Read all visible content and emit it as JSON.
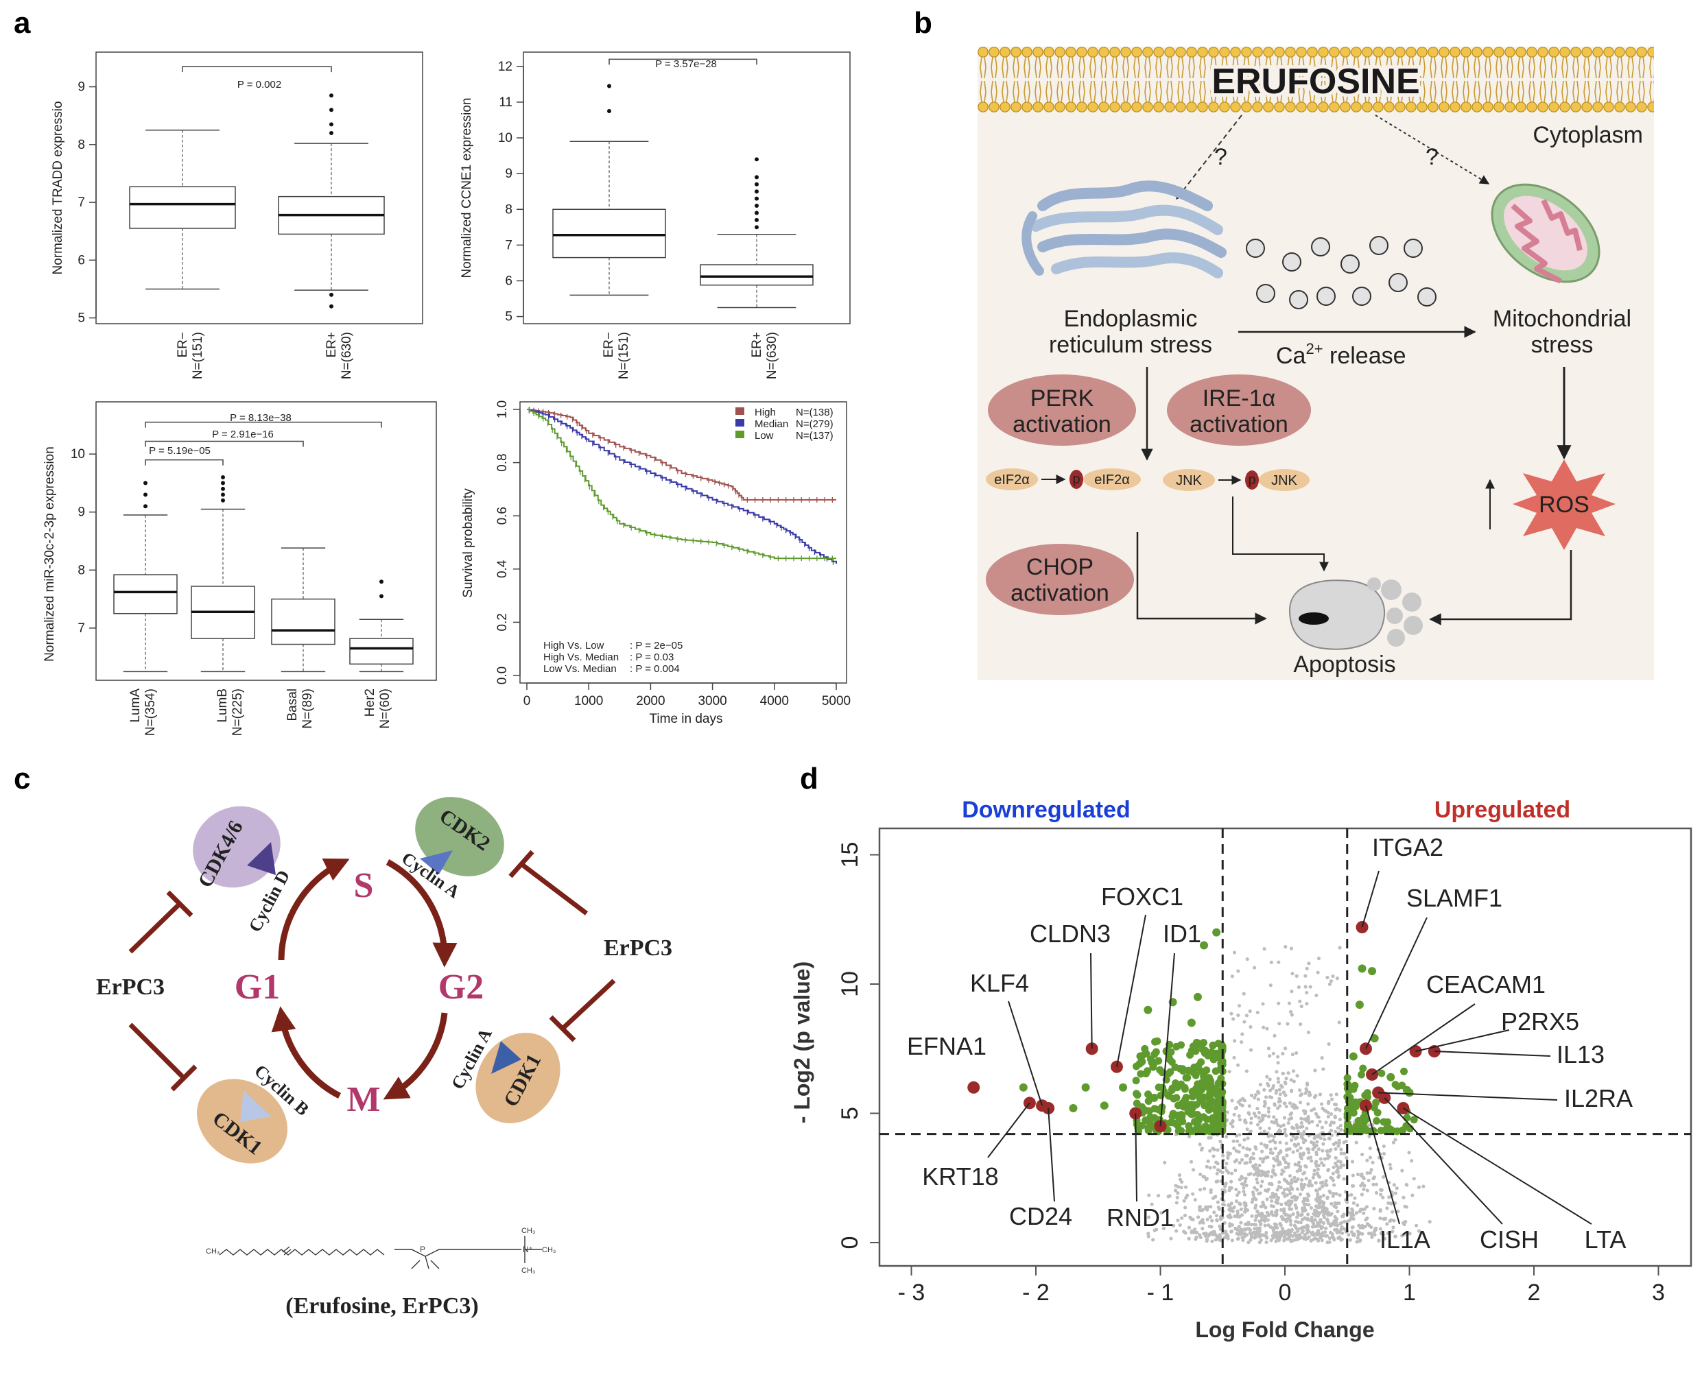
{
  "panel_labels": [
    "a",
    "b",
    "c",
    "d"
  ],
  "panel_a": {
    "tradd": {
      "ylabel": "Normalized TRADD expressio",
      "yticks": [
        "5",
        "6",
        "7",
        "8",
        "9"
      ],
      "groups": [
        {
          "name": "ER−",
          "n": "N=(151)"
        },
        {
          "name": "ER+",
          "n": "N=(630)"
        }
      ],
      "pvalue": "P = 0.002"
    },
    "ccne1": {
      "ylabel": "Normalized CCNE1 expression",
      "yticks": [
        "5",
        "6",
        "7",
        "8",
        "9",
        "10",
        "11",
        "12"
      ],
      "groups": [
        {
          "name": "ER−",
          "n": "N=(151)"
        },
        {
          "name": "ER+",
          "n": "N=(630)"
        }
      ],
      "pvalue": "P = 3.57e−28"
    },
    "mir30c": {
      "ylabel": "Normalized miR-30c-2-3p expression",
      "yticks": [
        "7",
        "8",
        "9",
        "10"
      ],
      "groups": [
        {
          "name": "LumA",
          "n": "N=(354)"
        },
        {
          "name": "LumB",
          "n": "N=(225)"
        },
        {
          "name": "Basal",
          "n": "N=(89)"
        },
        {
          "name": "Her2",
          "n": "N=(60)"
        }
      ],
      "pvalues": [
        "P = 5.19e−05",
        "P = 2.91e−16",
        "P = 8.13e−38"
      ]
    },
    "survival": {
      "ylabel": "Survival probability",
      "xlabel": "Time in days",
      "yticks": [
        "0.0",
        "0.2",
        "0.4",
        "0.6",
        "0.8",
        "1.0"
      ],
      "xticks": [
        "0",
        "1000",
        "2000",
        "3000",
        "4000",
        "5000"
      ],
      "legend": [
        {
          "label": "High",
          "n": "N=(138)",
          "color": "#a0524e"
        },
        {
          "label": "Median",
          "n": "N=(279)",
          "color": "#3a3aa8"
        },
        {
          "label": "Low",
          "n": "N=(137)",
          "color": "#5e9a2e"
        }
      ],
      "stats": [
        {
          "label": "High Vs. Low",
          "value": ": P = 2e−05"
        },
        {
          "label": "High Vs. Median",
          "value": ": P = 0.03"
        },
        {
          "label": "Low Vs. Median",
          "value": ": P = 0.004"
        }
      ]
    }
  },
  "panel_b": {
    "drug": "ERUFOSINE",
    "compartment": "Cytoplasm",
    "question_mark": "?",
    "er_stress": [
      "Endoplasmic",
      "reticulum stress"
    ],
    "mito_stress": [
      "Mitochondrial",
      "stress"
    ],
    "ca_release": "Ca",
    "ca_sup": "2+",
    "ca_suffix": " release",
    "perk": [
      "PERK",
      "activation"
    ],
    "ire": [
      "IRE-1α",
      "activation"
    ],
    "chop": [
      "CHOP",
      "activation"
    ],
    "eif": "eIF2α",
    "p": "p",
    "jnk": "JNK",
    "ros": "ROS",
    "apoptosis": "Apoptosis"
  },
  "panel_c": {
    "phases": [
      "S",
      "G2",
      "M",
      "G1"
    ],
    "cdks": [
      "CDK4/6",
      "CDK2",
      "CDK1",
      "CDK1"
    ],
    "cyclins": [
      "Cyclin D",
      "Cyclin A",
      "Cyclin A",
      "Cyclin B"
    ],
    "inhibitor": "ErPC3",
    "compound_caption": "(Erufosine, ErPC3)"
  },
  "panel_d": {
    "downregulated": "Downregulated",
    "upregulated": "Upregulated",
    "xlabel": "Log Fold Change",
    "ylabel": "- Log2 (p value)",
    "xticks": [
      "- 3",
      "- 2",
      "- 1",
      "0",
      "1",
      "2",
      "3"
    ],
    "yticks": [
      "0",
      "5",
      "10",
      "15"
    ],
    "genes_down": [
      "FOXC1",
      "CLDN3",
      "ID1",
      "KLF4",
      "EFNA1",
      "KRT18",
      "CD24",
      "RND1"
    ],
    "genes_up": [
      "ITGA2",
      "SLAMF1",
      "CEACAM1",
      "P2RX5",
      "IL13",
      "IL2RA",
      "IL1A",
      "CISH",
      "LTA"
    ]
  },
  "chart_data": [
    {
      "type": "box",
      "ylabel": "Normalized TRADD expressio",
      "categories": [
        "ER− N=(151)",
        "ER+ N=(630)"
      ],
      "boxes": [
        {
          "low": 5.5,
          "q1": 6.55,
          "median": 6.97,
          "q3": 7.27,
          "high": 8.25
        },
        {
          "low": 5.48,
          "q1": 6.45,
          "median": 6.78,
          "q3": 7.1,
          "high": 8.02
        }
      ],
      "outliers": [
        [],
        [
          8.85,
          8.6,
          8.35,
          8.2,
          5.4,
          5.2
        ]
      ],
      "ylim": [
        4.9,
        9.6
      ]
    },
    {
      "type": "box",
      "ylabel": "Normalized CCNE1 expression",
      "categories": [
        "ER− N=(151)",
        "ER+ N=(630)"
      ],
      "boxes": [
        {
          "low": 5.6,
          "q1": 6.65,
          "median": 7.28,
          "q3": 8.0,
          "high": 9.9
        },
        {
          "low": 5.25,
          "q1": 5.88,
          "median": 6.12,
          "q3": 6.45,
          "high": 7.3
        }
      ],
      "outliers": [
        [
          11.45,
          10.75
        ],
        [
          7.5,
          7.7,
          7.9,
          8.1,
          8.3,
          8.5,
          8.7,
          8.9,
          9.4
        ]
      ],
      "ylim": [
        4.8,
        12.4
      ]
    },
    {
      "type": "box",
      "ylabel": "Normalized miR-30c-2-3p expression",
      "categories": [
        "LumA N=(354)",
        "LumB N=(225)",
        "Basal N=(89)",
        "Her2 N=(60)"
      ],
      "boxes": [
        {
          "low": 6.25,
          "q1": 7.25,
          "median": 7.62,
          "q3": 7.92,
          "high": 8.95
        },
        {
          "low": 6.25,
          "q1": 6.82,
          "median": 7.28,
          "q3": 7.72,
          "high": 9.05
        },
        {
          "low": 6.25,
          "q1": 6.72,
          "median": 6.96,
          "q3": 7.5,
          "high": 8.38
        },
        {
          "low": 6.25,
          "q1": 6.38,
          "median": 6.65,
          "q3": 6.82,
          "high": 7.15
        }
      ],
      "outliers": [
        [
          9.1,
          9.3,
          9.5
        ],
        [
          9.2,
          9.3,
          9.4,
          9.5,
          9.6
        ],
        [],
        [
          7.55,
          7.8
        ]
      ],
      "comparisons": [
        {
          "pair": [
            "LumA",
            "LumB"
          ],
          "p": "P = 5.19e−05"
        },
        {
          "pair": [
            "LumA",
            "Basal"
          ],
          "p": "P = 2.91e−16"
        },
        {
          "pair": [
            "LumA",
            "Her2"
          ],
          "p": "P = 8.13e−38"
        }
      ],
      "ylim": [
        6.1,
        10.9
      ]
    },
    {
      "type": "line",
      "xlabel": "Time in days",
      "ylabel": "Survival probability",
      "xlim": [
        0,
        5000
      ],
      "ylim": [
        0,
        1
      ],
      "series": [
        {
          "name": "High",
          "x": [
            0,
            300,
            700,
            1000,
            1500,
            2000,
            2500,
            3000,
            3300,
            3500,
            4000,
            4500,
            5000
          ],
          "values": [
            1.0,
            0.99,
            0.97,
            0.91,
            0.86,
            0.82,
            0.76,
            0.73,
            0.71,
            0.66,
            0.66,
            0.66,
            0.66
          ]
        },
        {
          "name": "Median",
          "x": [
            0,
            300,
            700,
            1000,
            1500,
            2000,
            2500,
            3000,
            3500,
            4000,
            4300,
            4600,
            5000
          ],
          "values": [
            1.0,
            0.98,
            0.93,
            0.88,
            0.81,
            0.76,
            0.71,
            0.66,
            0.62,
            0.57,
            0.53,
            0.47,
            0.42
          ]
        },
        {
          "name": "Low",
          "x": [
            0,
            300,
            600,
            900,
            1200,
            1500,
            2000,
            2500,
            3000,
            3500,
            4000,
            4500,
            5000
          ],
          "values": [
            1.0,
            0.96,
            0.86,
            0.75,
            0.64,
            0.57,
            0.53,
            0.51,
            0.5,
            0.47,
            0.44,
            0.44,
            0.44
          ]
        }
      ]
    },
    {
      "type": "scatter",
      "title": "",
      "xlabel": "Log Fold Change",
      "ylabel": "- Log2 (p value)",
      "xlim": [
        -3,
        3
      ],
      "ylim": [
        0,
        16
      ],
      "thresholds": {
        "x": [
          -0.5,
          0.5
        ],
        "y": 4.2
      },
      "labeled_points": [
        {
          "gene": "EFNA1",
          "x": -2.5,
          "y": 6.0
        },
        {
          "gene": "KLF4",
          "x": -1.95,
          "y": 5.3
        },
        {
          "gene": "KRT18",
          "x": -2.05,
          "y": 5.4
        },
        {
          "gene": "CD24",
          "x": -1.9,
          "y": 5.2
        },
        {
          "gene": "CLDN3",
          "x": -1.55,
          "y": 7.5
        },
        {
          "gene": "FOXC1",
          "x": -1.35,
          "y": 6.8
        },
        {
          "gene": "ID1",
          "x": -1.0,
          "y": 4.5
        },
        {
          "gene": "RND1",
          "x": -1.2,
          "y": 5.0
        },
        {
          "gene": "ITGA2",
          "x": 0.62,
          "y": 12.2
        },
        {
          "gene": "SLAMF1",
          "x": 0.65,
          "y": 7.5
        },
        {
          "gene": "CEACAM1",
          "x": 0.7,
          "y": 6.5
        },
        {
          "gene": "P2RX5",
          "x": 1.05,
          "y": 7.4
        },
        {
          "gene": "IL13",
          "x": 1.2,
          "y": 7.4
        },
        {
          "gene": "IL2RA",
          "x": 0.75,
          "y": 5.8
        },
        {
          "gene": "IL1A",
          "x": 0.65,
          "y": 5.3
        },
        {
          "gene": "CISH",
          "x": 0.8,
          "y": 5.6
        },
        {
          "gene": "LTA",
          "x": 0.95,
          "y": 5.2
        }
      ],
      "colors": {
        "down": "#5e9a2e",
        "up_labeled": "#9b2a2a",
        "ns": "#bdbdbd"
      }
    }
  ]
}
